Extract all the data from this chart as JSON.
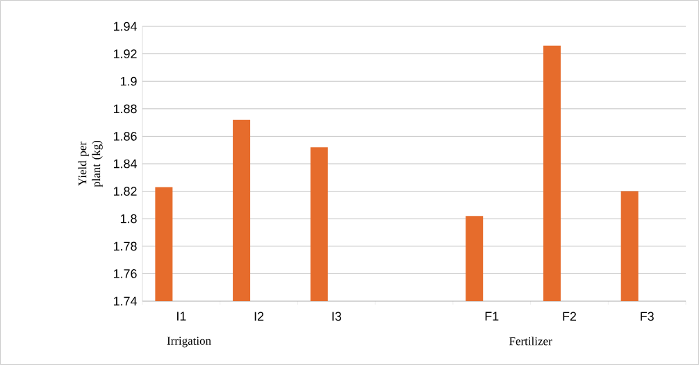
{
  "chart_data": {
    "type": "bar",
    "categories": [
      "I1",
      "I2",
      "I3",
      null,
      "F1",
      "F2",
      "F3"
    ],
    "values": [
      1.823,
      1.872,
      1.852,
      null,
      1.802,
      1.926,
      1.82
    ],
    "color": "#e66c2c",
    "ylabel": "Yield per plant (kg)",
    "ylim": [
      1.74,
      1.94
    ],
    "yticks": [
      1.74,
      1.76,
      1.78,
      1.8,
      1.82,
      1.84,
      1.86,
      1.88,
      1.9,
      1.92,
      1.94
    ],
    "grid": "y",
    "annotations": [
      "Irrigation",
      "Fertilizer"
    ]
  }
}
